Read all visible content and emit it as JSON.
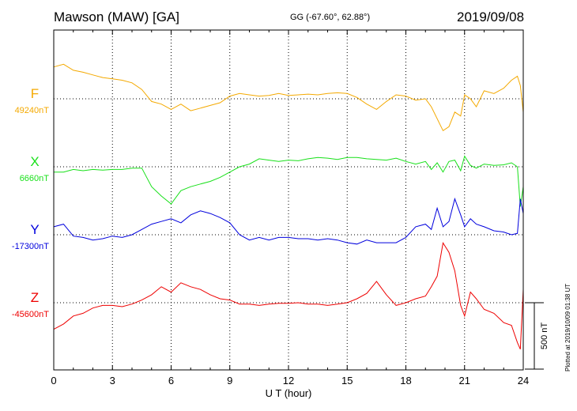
{
  "header": {
    "station": "Mawson (MAW)  [GA]",
    "coordinates": "GG (-67.60°,  62.88°)",
    "date": "2019/09/08",
    "plotted": "Plotted at 2019/10/09 01:38 UT"
  },
  "chart_data": {
    "type": "line",
    "xlabel": "U T (hour)",
    "xlim": [
      0,
      24
    ],
    "xticks": [
      0,
      3,
      6,
      9,
      12,
      15,
      18,
      21,
      24
    ],
    "grid": true,
    "scale_bar": {
      "label": "500 nT",
      "value": 500
    },
    "series": [
      {
        "name": "F",
        "baseline_label": "49240nT",
        "color": "#f4a900",
        "x": [
          0,
          0.5,
          1.0,
          1.5,
          2.0,
          2.5,
          3.0,
          3.5,
          4.0,
          4.5,
          5.0,
          5.5,
          6.0,
          6.5,
          7.0,
          7.5,
          8.0,
          8.5,
          9.0,
          9.5,
          10.0,
          10.5,
          11.0,
          11.5,
          12.0,
          12.5,
          13.0,
          13.5,
          14.0,
          14.5,
          15.0,
          15.5,
          16.0,
          16.5,
          17.0,
          17.5,
          18.0,
          18.5,
          19.0,
          19.3,
          19.6,
          19.9,
          20.2,
          20.5,
          20.8,
          21.0,
          21.3,
          21.6,
          22.0,
          22.5,
          23.0,
          23.4,
          23.7,
          23.85,
          24.0
        ],
        "values": [
          240,
          260,
          215,
          200,
          180,
          160,
          150,
          140,
          120,
          70,
          -20,
          -40,
          -80,
          -40,
          -90,
          -70,
          -50,
          -30,
          20,
          40,
          30,
          20,
          25,
          40,
          25,
          30,
          35,
          30,
          40,
          45,
          40,
          10,
          -40,
          -80,
          -20,
          30,
          20,
          -10,
          0,
          -60,
          -150,
          -240,
          -210,
          -100,
          -130,
          30,
          0,
          -60,
          60,
          40,
          80,
          140,
          170,
          100,
          -100
        ]
      },
      {
        "name": "X",
        "baseline_label": "6660nT",
        "color": "#18e01a",
        "x": [
          0,
          0.5,
          1.0,
          1.5,
          2.0,
          2.5,
          3.0,
          3.5,
          4.0,
          4.5,
          5.0,
          5.5,
          6.0,
          6.5,
          7.0,
          7.5,
          8.0,
          8.5,
          9.0,
          9.5,
          10.0,
          10.5,
          11.0,
          11.5,
          12.0,
          12.5,
          13.0,
          13.5,
          14.0,
          14.5,
          15.0,
          15.5,
          16.0,
          16.5,
          17.0,
          17.5,
          18.0,
          18.5,
          19.0,
          19.3,
          19.6,
          19.9,
          20.2,
          20.5,
          20.8,
          21.0,
          21.3,
          21.6,
          22.0,
          22.5,
          23.0,
          23.4,
          23.7,
          23.85,
          24.0
        ],
        "values": [
          -40,
          -40,
          -20,
          -30,
          -20,
          -25,
          -20,
          -20,
          -10,
          -10,
          -150,
          -220,
          -280,
          -180,
          -150,
          -130,
          -110,
          -80,
          -40,
          0,
          20,
          60,
          50,
          40,
          50,
          45,
          60,
          70,
          65,
          55,
          70,
          70,
          60,
          55,
          50,
          65,
          40,
          20,
          40,
          -20,
          30,
          -40,
          40,
          50,
          -30,
          80,
          10,
          -10,
          20,
          10,
          15,
          30,
          0,
          -300,
          -150
        ]
      },
      {
        "name": "Y",
        "baseline_label": "-17300nT",
        "color": "#0000dd",
        "x": [
          0,
          0.5,
          1.0,
          1.5,
          2.0,
          2.5,
          3.0,
          3.5,
          4.0,
          4.5,
          5.0,
          5.5,
          6.0,
          6.5,
          7.0,
          7.5,
          8.0,
          8.5,
          9.0,
          9.5,
          10.0,
          10.5,
          11.0,
          11.5,
          12.0,
          12.5,
          13.0,
          13.5,
          14.0,
          14.5,
          15.0,
          15.5,
          16.0,
          16.5,
          17.0,
          17.5,
          18.0,
          18.5,
          19.0,
          19.3,
          19.6,
          19.9,
          20.2,
          20.5,
          20.8,
          21.0,
          21.3,
          21.6,
          22.0,
          22.5,
          23.0,
          23.4,
          23.7,
          23.85,
          24.0
        ],
        "values": [
          60,
          80,
          -10,
          -20,
          -40,
          -30,
          -10,
          -20,
          0,
          40,
          80,
          100,
          120,
          90,
          150,
          180,
          160,
          130,
          90,
          0,
          -40,
          -20,
          -40,
          -20,
          -20,
          -30,
          -30,
          -40,
          -30,
          -40,
          -60,
          -70,
          -40,
          -60,
          -60,
          -60,
          -20,
          60,
          80,
          40,
          200,
          60,
          100,
          270,
          150,
          60,
          120,
          80,
          60,
          30,
          20,
          0,
          10,
          270,
          160
        ]
      },
      {
        "name": "Z",
        "baseline_label": "-45600nT",
        "color": "#ee0000",
        "x": [
          0,
          0.5,
          1.0,
          1.5,
          2.0,
          2.5,
          3.0,
          3.5,
          4.0,
          4.5,
          5.0,
          5.5,
          6.0,
          6.5,
          7.0,
          7.5,
          8.0,
          8.5,
          9.0,
          9.5,
          10.0,
          10.5,
          11.0,
          11.5,
          12.0,
          12.5,
          13.0,
          13.5,
          14.0,
          14.5,
          15.0,
          15.5,
          16.0,
          16.5,
          17.0,
          17.5,
          18.0,
          18.5,
          19.0,
          19.3,
          19.6,
          19.9,
          20.2,
          20.5,
          20.8,
          21.0,
          21.3,
          21.6,
          22.0,
          22.5,
          23.0,
          23.4,
          23.7,
          23.85,
          24.0
        ],
        "values": [
          -200,
          -160,
          -100,
          -80,
          -40,
          -20,
          -20,
          -30,
          -10,
          20,
          60,
          120,
          80,
          150,
          120,
          100,
          60,
          30,
          20,
          -10,
          -10,
          -20,
          -10,
          -5,
          -5,
          0,
          -10,
          -10,
          -20,
          -10,
          0,
          30,
          70,
          160,
          60,
          -20,
          0,
          30,
          50,
          120,
          200,
          450,
          380,
          240,
          -20,
          -100,
          80,
          30,
          -50,
          -80,
          -150,
          -170,
          -300,
          -350,
          100
        ]
      }
    ]
  }
}
